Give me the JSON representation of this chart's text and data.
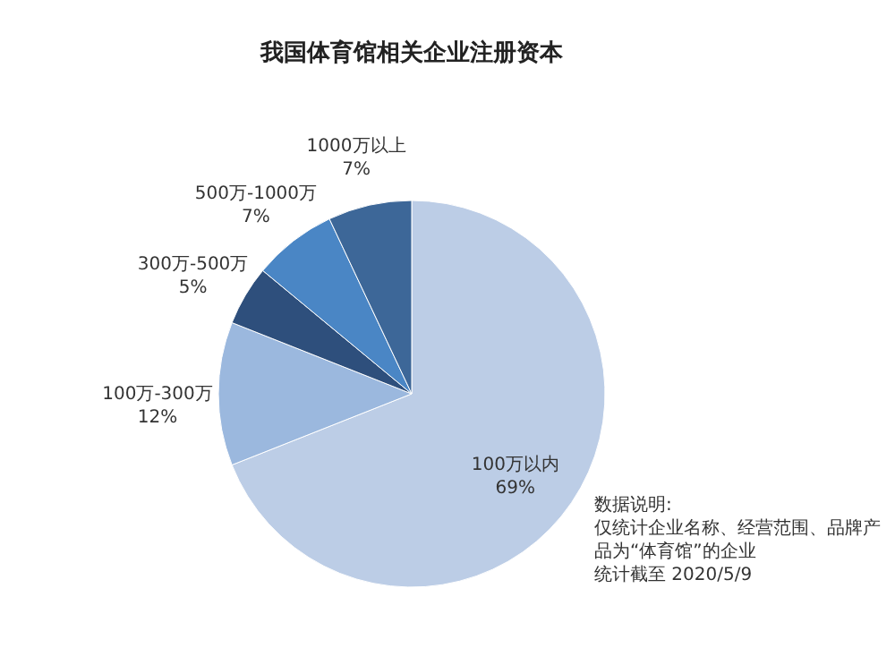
{
  "chart_data": {
    "type": "pie",
    "title": "我国体育馆相关企业注册资本",
    "categories": [
      "100万以内",
      "100万-300万",
      "300万-500万",
      "500万-1000万",
      "1000万以上"
    ],
    "values": [
      69,
      12,
      5,
      7,
      7
    ],
    "colors": [
      "#bccde6",
      "#9bb8de",
      "#2e4f7c",
      "#4a86c5",
      "#3d6798"
    ],
    "value_labels": [
      "69%",
      "12%",
      "5%",
      "7%",
      "7%"
    ],
    "annotations": [
      "数据说明:",
      "仅统计企业名称、经营范围、品牌产品为“体育馆”的企业",
      "统计截至 2020/5/9"
    ]
  }
}
